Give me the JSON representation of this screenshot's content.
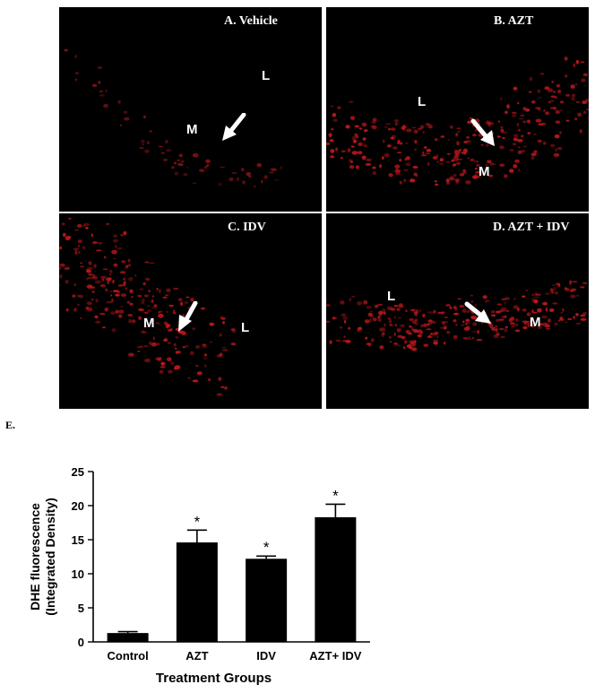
{
  "figure_label": "E.",
  "panels": [
    {
      "id": "A",
      "title": "A. Vehicle",
      "markers": [
        "M",
        "L"
      ]
    },
    {
      "id": "B",
      "title": "B. AZT",
      "markers": [
        "L",
        "M"
      ]
    },
    {
      "id": "C",
      "title": "C. IDV",
      "markers": [
        "M",
        "L"
      ]
    },
    {
      "id": "D",
      "title": "D. AZT + IDV",
      "markers": [
        "L",
        "M"
      ]
    }
  ],
  "colors": {
    "background": "#000000",
    "fluorescence": "#c0181c",
    "bar": "#000000"
  },
  "chart_data": {
    "type": "bar",
    "categories": [
      "Control",
      "AZT",
      "IDV",
      "AZT+ IDV"
    ],
    "values": [
      1.3,
      14.6,
      12.2,
      18.3
    ],
    "errors": [
      0.2,
      1.8,
      0.4,
      1.9
    ],
    "significance": [
      "",
      "*",
      "*",
      "*"
    ],
    "title": "",
    "xlabel": "Treatment Groups",
    "ylabel": "DHE fluorescence",
    "ylabel_line2": "(Integrated Density)",
    "ylim": [
      0,
      25
    ],
    "yticks": [
      "0",
      "5",
      "10",
      "15",
      "20",
      "25"
    ],
    "grid": false
  }
}
